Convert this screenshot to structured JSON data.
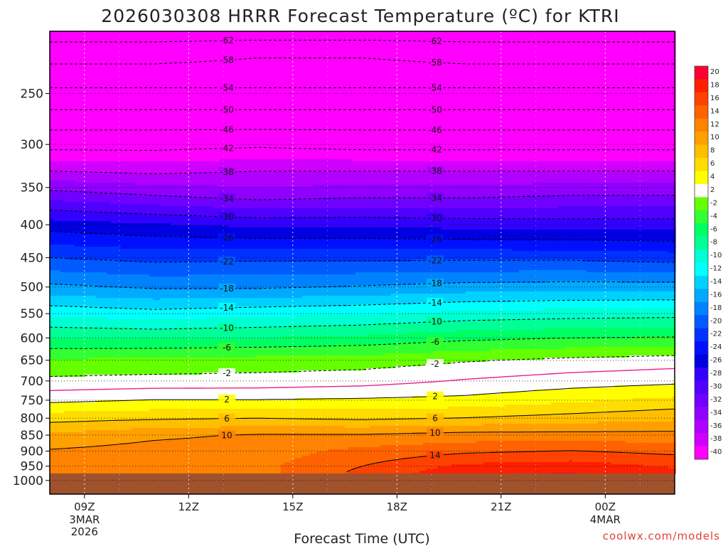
{
  "title": "2026030308 HRRR Forecast Temperature (ºC) for KTRI",
  "credit": "coolwx.com/models",
  "chart_data": {
    "type": "heatmap",
    "title": "2026030308 HRRR Forecast Temperature (ºC) for KTRI",
    "xlabel": "Forecast Time (UTC)",
    "ylabel": "",
    "x_ticks": [
      {
        "hour": 9,
        "label": "09Z",
        "sub": [
          "3MAR",
          "2026"
        ]
      },
      {
        "hour": 12,
        "label": "12Z",
        "sub": []
      },
      {
        "hour": 15,
        "label": "15Z",
        "sub": []
      },
      {
        "hour": 18,
        "label": "18Z",
        "sub": []
      },
      {
        "hour": 21,
        "label": "21Z",
        "sub": []
      },
      {
        "hour": 24,
        "label": "00Z",
        "sub": [
          "4MAR"
        ]
      }
    ],
    "xlim_hours": [
      8,
      26
    ],
    "y_ticks": [
      250,
      300,
      350,
      400,
      450,
      500,
      550,
      600,
      650,
      700,
      750,
      800,
      850,
      900,
      950,
      1000
    ],
    "ylim_hPa": [
      1050,
      200
    ],
    "surface_pressure_hPa": 975,
    "colorbar_ticks": [
      20,
      18,
      16,
      14,
      12,
      10,
      8,
      6,
      4,
      2,
      -2,
      -4,
      -6,
      -8,
      -10,
      -12,
      -14,
      -16,
      -18,
      -20,
      -22,
      -24,
      -26,
      -28,
      -30,
      -32,
      -34,
      -36,
      -38,
      -40
    ],
    "color_scale": [
      {
        "min": 18,
        "max": 22,
        "color": "#ff0030"
      },
      {
        "min": 16,
        "max": 18,
        "color": "#ff2000"
      },
      {
        "min": 14,
        "max": 16,
        "color": "#ff4200"
      },
      {
        "min": 12,
        "max": 14,
        "color": "#ff6200"
      },
      {
        "min": 10,
        "max": 12,
        "color": "#ff8200"
      },
      {
        "min": 8,
        "max": 10,
        "color": "#ffa000"
      },
      {
        "min": 6,
        "max": 8,
        "color": "#ffbe00"
      },
      {
        "min": 4,
        "max": 6,
        "color": "#ffdd00"
      },
      {
        "min": 2,
        "max": 4,
        "color": "#ffff00"
      },
      {
        "min": -2,
        "max": 2,
        "color": "#ffffff"
      },
      {
        "min": -4,
        "max": -2,
        "color": "#64ff00"
      },
      {
        "min": -6,
        "max": -4,
        "color": "#32ff32"
      },
      {
        "min": -8,
        "max": -6,
        "color": "#00ff64"
      },
      {
        "min": -10,
        "max": -8,
        "color": "#00ff96"
      },
      {
        "min": -12,
        "max": -10,
        "color": "#00ffd2"
      },
      {
        "min": -14,
        "max": -12,
        "color": "#00ffff"
      },
      {
        "min": -16,
        "max": -14,
        "color": "#00d2ff"
      },
      {
        "min": -18,
        "max": -16,
        "color": "#00aaff"
      },
      {
        "min": -20,
        "max": -18,
        "color": "#0082ff"
      },
      {
        "min": -22,
        "max": -20,
        "color": "#005aff"
      },
      {
        "min": -24,
        "max": -22,
        "color": "#0032ff"
      },
      {
        "min": -26,
        "max": -24,
        "color": "#0010ff"
      },
      {
        "min": -28,
        "max": -26,
        "color": "#0000e0"
      },
      {
        "min": -30,
        "max": -28,
        "color": "#3200ff"
      },
      {
        "min": -32,
        "max": -30,
        "color": "#5000ff"
      },
      {
        "min": -34,
        "max": -32,
        "color": "#7000ff"
      },
      {
        "min": -36,
        "max": -34,
        "color": "#9000ff"
      },
      {
        "min": -38,
        "max": -36,
        "color": "#b000ff"
      },
      {
        "min": -40,
        "max": -38,
        "color": "#d000ff"
      },
      {
        "min": -90,
        "max": -40,
        "color": "#ff00ff"
      }
    ],
    "ground_color": "#a0522d",
    "freezing_line_color": "#e8208c",
    "contour_levels": [
      -62,
      -58,
      -54,
      -50,
      -46,
      -42,
      -38,
      -34,
      -30,
      -26,
      -22,
      -18,
      -14,
      -10,
      -6,
      -2,
      2,
      6,
      10,
      14
    ],
    "profile_hours": [
      8,
      11,
      14,
      17,
      20,
      23,
      26
    ],
    "profiles": [
      {
        "hPa": 200,
        "temps": [
          -64,
          -64,
          -64,
          -64,
          -64,
          -64,
          -64
        ]
      },
      {
        "hPa": 220,
        "temps": [
          -59,
          -59,
          -58,
          -58,
          -59,
          -59,
          -59
        ]
      },
      {
        "hPa": 240,
        "temps": [
          -55,
          -55,
          -55,
          -55,
          -55,
          -55,
          -55
        ]
      },
      {
        "hPa": 260,
        "temps": [
          -51,
          -51,
          -51,
          -51,
          -51,
          -51,
          -51
        ]
      },
      {
        "hPa": 280,
        "temps": [
          -47,
          -47,
          -47,
          -47,
          -47,
          -47,
          -47
        ]
      },
      {
        "hPa": 300,
        "temps": [
          -43,
          -43,
          -42.5,
          -43,
          -43,
          -43,
          -43
        ]
      },
      {
        "hPa": 330,
        "temps": [
          -38,
          -38.5,
          -38,
          -38,
          -38,
          -38,
          -38
        ]
      },
      {
        "hPa": 360,
        "temps": [
          -33,
          -34,
          -35,
          -34.5,
          -34.5,
          -34,
          -34
        ]
      },
      {
        "hPa": 400,
        "temps": [
          -27,
          -27.8,
          -28.5,
          -28.5,
          -28.8,
          -29,
          -29
        ]
      },
      {
        "hPa": 450,
        "temps": [
          -22,
          -22.7,
          -22.5,
          -22.5,
          -22.5,
          -22.5,
          -23
        ]
      },
      {
        "hPa": 500,
        "temps": [
          -17.5,
          -18.3,
          -18.3,
          -17.8,
          -17.2,
          -17,
          -17
        ]
      },
      {
        "hPa": 550,
        "temps": [
          -12.5,
          -13.2,
          -12.6,
          -12.2,
          -11.4,
          -11,
          -10.8
        ]
      },
      {
        "hPa": 600,
        "temps": [
          -8,
          -8.2,
          -8,
          -7.5,
          -6.5,
          -6,
          -5.8
        ]
      },
      {
        "hPa": 650,
        "temps": [
          -3.8,
          -3.5,
          -3.2,
          -3,
          -2.2,
          -1.5,
          -1
        ]
      },
      {
        "hPa": 700,
        "temps": [
          -1.5,
          -1.3,
          -1.2,
          -0.8,
          0.2,
          1,
          1.5
        ]
      },
      {
        "hPa": 750,
        "temps": [
          1.5,
          2.1,
          2.1,
          2.3,
          2.6,
          3.6,
          4.5
        ]
      },
      {
        "hPa": 800,
        "temps": [
          5.2,
          5.7,
          6,
          5.6,
          6.1,
          6.8,
          7.6
        ]
      },
      {
        "hPa": 850,
        "temps": [
          8.4,
          9.6,
          10.2,
          10.2,
          10.8,
          10.8,
          10.7
        ]
      },
      {
        "hPa": 900,
        "temps": [
          10.2,
          10.8,
          11,
          12.6,
          13.6,
          14.1,
          13.4
        ]
      },
      {
        "hPa": 950,
        "temps": [
          10.5,
          11.4,
          11.5,
          14,
          16.5,
          17,
          15.8
        ]
      },
      {
        "hPa": 975,
        "temps": [
          10,
          11,
          11.3,
          14.6,
          17.6,
          18.1,
          16.5
        ]
      }
    ]
  }
}
